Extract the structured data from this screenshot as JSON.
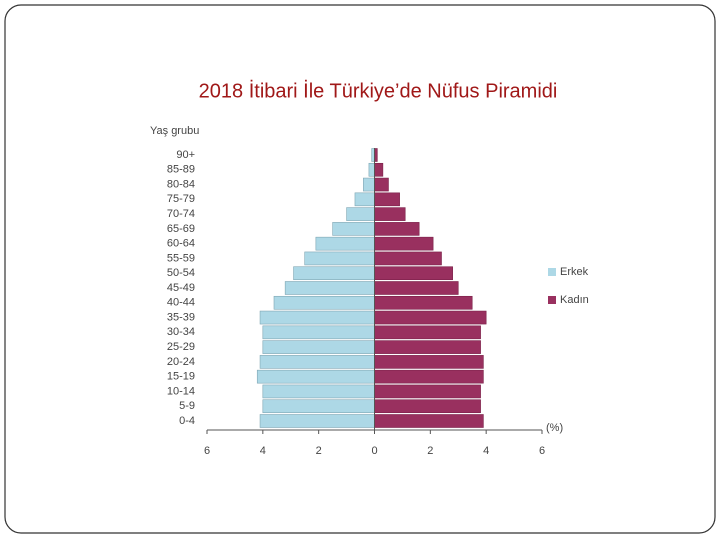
{
  "chart_data": {
    "type": "pyramid",
    "title": "2018 İtibari İle Türkiye’de Nüfus Piramidi",
    "y_label": "Yaş grubu",
    "x_label": "(%)",
    "categories": [
      "0-4",
      "5-9",
      "10-14",
      "15-19",
      "20-24",
      "25-29",
      "30-34",
      "35-39",
      "40-44",
      "45-49",
      "50-54",
      "55-59",
      "60-64",
      "65-69",
      "70-74",
      "75-79",
      "80-84",
      "85-89",
      "90+"
    ],
    "series": [
      {
        "name": "Erkek",
        "color": "#add8e6",
        "side": "left",
        "values": [
          4.1,
          4.0,
          4.0,
          4.2,
          4.1,
          4.0,
          4.0,
          4.1,
          3.6,
          3.2,
          2.9,
          2.5,
          2.1,
          1.5,
          1.0,
          0.7,
          0.4,
          0.2,
          0.1
        ]
      },
      {
        "name": "Kadın",
        "color": "#99305f",
        "side": "right",
        "values": [
          3.9,
          3.8,
          3.8,
          3.9,
          3.9,
          3.8,
          3.8,
          4.0,
          3.5,
          3.0,
          2.8,
          2.4,
          2.1,
          1.6,
          1.1,
          0.9,
          0.5,
          0.3,
          0.1
        ]
      }
    ],
    "xlim": [
      -6,
      6
    ],
    "xticks": [
      {
        "value": -6,
        "label": "6"
      },
      {
        "value": -4,
        "label": "4"
      },
      {
        "value": -2,
        "label": "2"
      },
      0,
      2,
      4,
      6
    ],
    "legend": "right"
  }
}
